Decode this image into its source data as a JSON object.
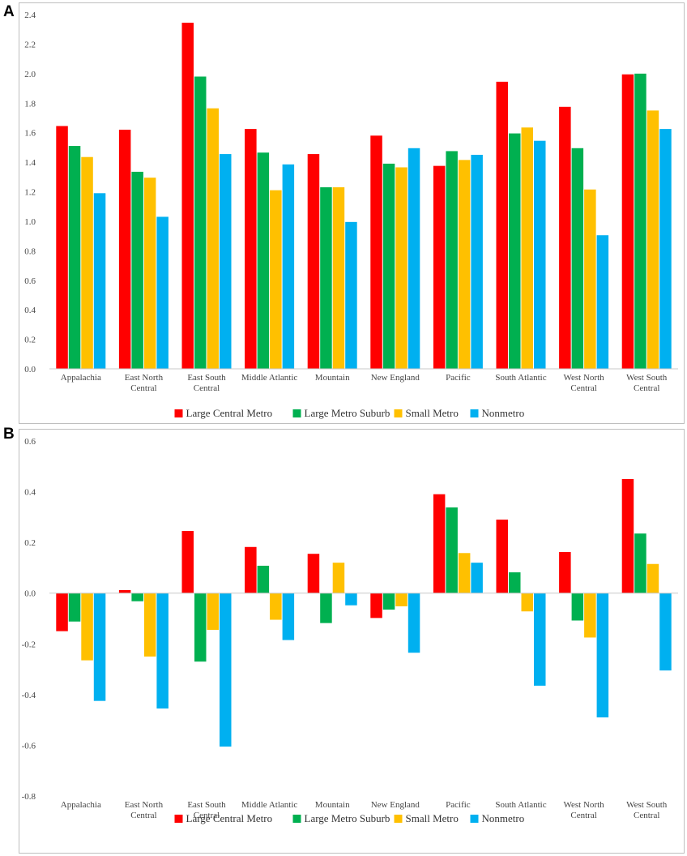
{
  "chart_data": [
    {
      "id": "A",
      "panel_label": "A",
      "type": "bar",
      "categories": [
        [
          "Appalachia"
        ],
        [
          "East North",
          "Central"
        ],
        [
          "East South",
          "Central"
        ],
        [
          "Middle Atlantic"
        ],
        [
          "Mountain"
        ],
        [
          "New England"
        ],
        [
          "Pacific"
        ],
        [
          "South Atlantic"
        ],
        [
          "West North",
          "Central"
        ],
        [
          "West South",
          "Central"
        ]
      ],
      "series": [
        {
          "name": "Large Central Metro",
          "color": "#ff0000",
          "values": [
            1.645,
            1.62,
            2.345,
            1.625,
            1.455,
            1.58,
            1.375,
            1.945,
            1.775,
            1.995
          ]
        },
        {
          "name": "Large Metro Suburb",
          "color": "#00b050",
          "values": [
            1.51,
            1.335,
            1.98,
            1.465,
            1.23,
            1.39,
            1.475,
            1.595,
            1.495,
            2.0
          ]
        },
        {
          "name": "Small Metro",
          "color": "#ffc000",
          "values": [
            1.435,
            1.295,
            1.765,
            1.21,
            1.23,
            1.365,
            1.415,
            1.635,
            1.215,
            1.75
          ]
        },
        {
          "name": "Nonmetro",
          "color": "#00b0f0",
          "values": [
            1.19,
            1.03,
            1.455,
            1.385,
            0.995,
            1.495,
            1.45,
            1.545,
            0.905,
            1.625
          ]
        }
      ],
      "yticks": [
        "0.0",
        "0.2",
        "0.4",
        "0.6",
        "0.8",
        "1.0",
        "1.2",
        "1.4",
        "1.6",
        "1.8",
        "2.0",
        "2.2",
        "2.4"
      ],
      "ylim": [
        0,
        2.4
      ],
      "xlabel": "",
      "ylabel": "",
      "legend": "bottom"
    },
    {
      "id": "B",
      "panel_label": "B",
      "type": "bar",
      "categories": [
        [
          "Appalachia"
        ],
        [
          "East North",
          "Central"
        ],
        [
          "East South",
          "Central"
        ],
        [
          "Middle Atlantic"
        ],
        [
          "Mountain"
        ],
        [
          "New England"
        ],
        [
          "Pacific"
        ],
        [
          "South Atlantic"
        ],
        [
          "West North",
          "Central"
        ],
        [
          "West South",
          "Central"
        ]
      ],
      "series": [
        {
          "name": "Large Central Metro",
          "color": "#ff0000",
          "values": [
            -0.15,
            0.012,
            0.245,
            0.182,
            0.155,
            -0.098,
            0.39,
            0.29,
            0.162,
            0.45
          ]
        },
        {
          "name": "Large Metro Suburb",
          "color": "#00b050",
          "values": [
            -0.112,
            -0.032,
            -0.27,
            0.108,
            -0.118,
            -0.065,
            0.338,
            0.082,
            -0.108,
            0.235
          ]
        },
        {
          "name": "Small Metro",
          "color": "#ffc000",
          "values": [
            -0.265,
            -0.25,
            -0.145,
            -0.105,
            0.12,
            -0.052,
            0.158,
            -0.072,
            -0.175,
            0.115
          ]
        },
        {
          "name": "Nonmetro",
          "color": "#00b0f0",
          "values": [
            -0.425,
            -0.455,
            -0.605,
            -0.185,
            -0.048,
            -0.235,
            0.12,
            -0.365,
            -0.49,
            -0.305
          ]
        }
      ],
      "yticks": [
        "-0.8",
        "-0.6",
        "-0.4",
        "-0.2",
        "0.0",
        "0.2",
        "0.4",
        "0.6"
      ],
      "ylim": [
        -0.8,
        0.6
      ],
      "xlabel": "",
      "ylabel": "",
      "legend": "bottom"
    }
  ]
}
